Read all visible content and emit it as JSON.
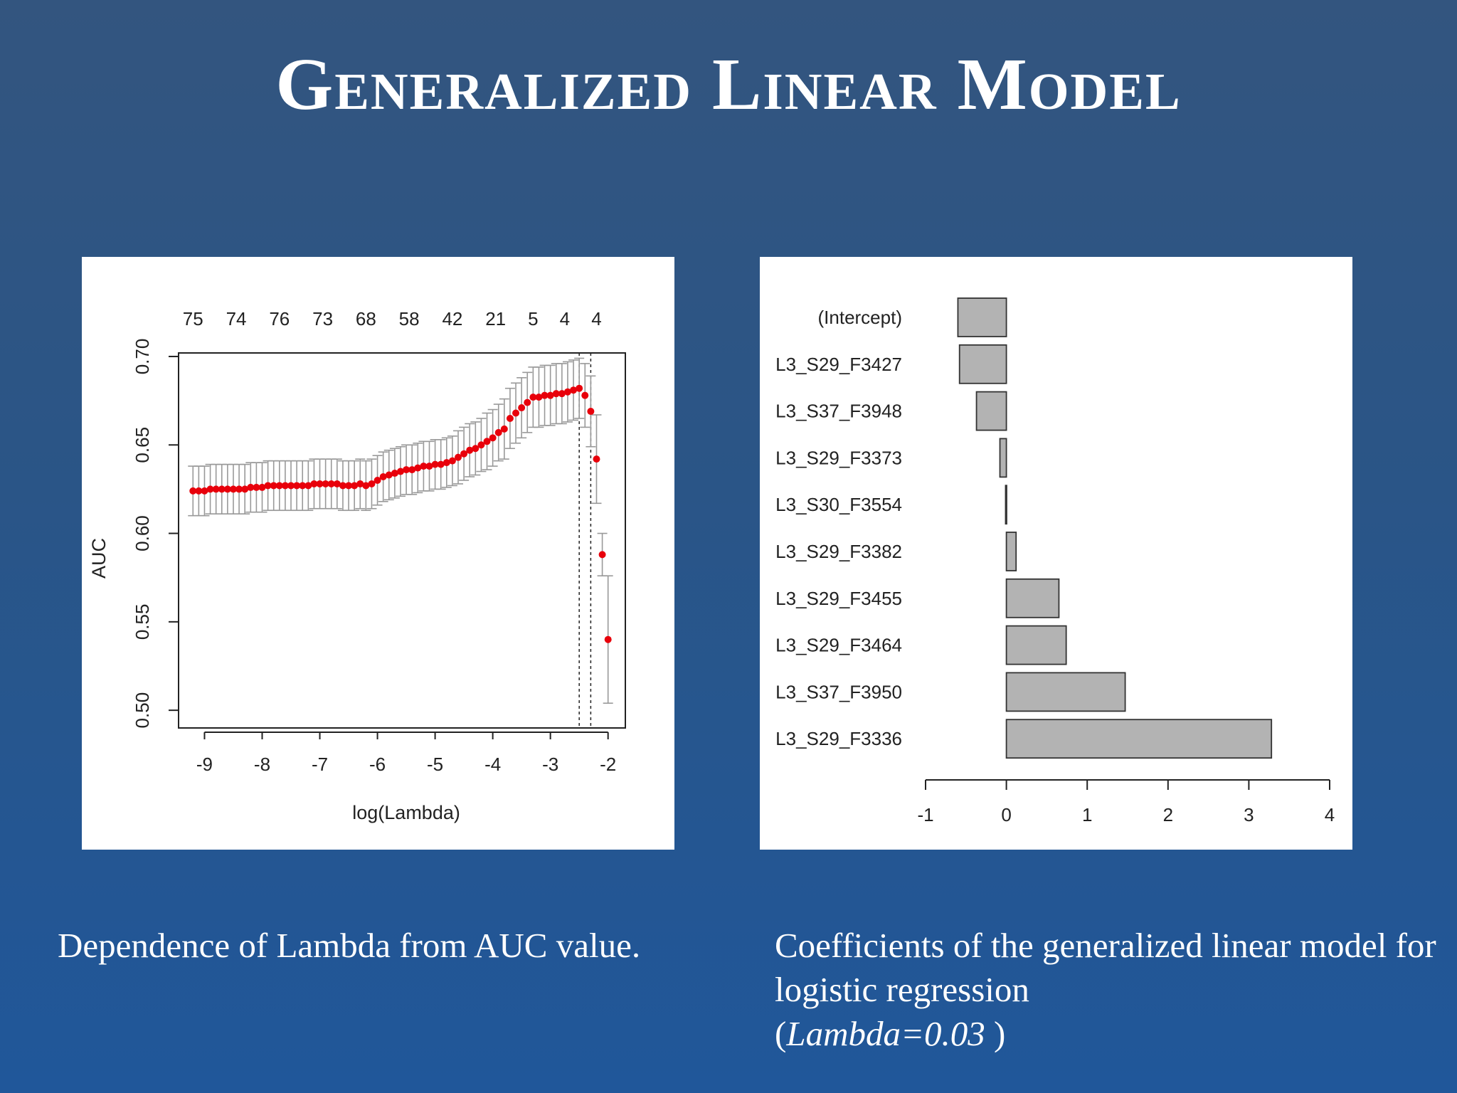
{
  "slide": {
    "title": "Generalized Linear Model",
    "left_caption": "Dependence of Lambda from AUC value.",
    "right_caption_main": "Coefficients of the generalized linear model for logistic regression",
    "right_caption_paren_open": "(",
    "right_caption_lambda": "Lambda=0.03",
    "right_caption_paren_close": " )"
  },
  "chart_data": [
    {
      "type": "scatter",
      "xlabel": "log(Lambda)",
      "ylabel": "AUC",
      "xlim": [
        -9.45,
        -1.7
      ],
      "ylim": [
        0.49,
        0.702
      ],
      "x_ticks": [
        -9,
        -8,
        -7,
        -6,
        -5,
        -4,
        -3,
        -2
      ],
      "y_ticks": [
        0.5,
        0.55,
        0.6,
        0.65,
        0.7
      ],
      "top_axis": {
        "x": [
          -9.2,
          -8.45,
          -7.7,
          -6.95,
          -6.2,
          -5.45,
          -4.7,
          -3.95,
          -3.3,
          -2.75,
          -2.2
        ],
        "labels": [
          "75",
          "74",
          "76",
          "73",
          "68",
          "58",
          "42",
          "21",
          "5",
          "4",
          "4"
        ]
      },
      "reference_lines_x": [
        -2.5,
        -2.3
      ],
      "colors": {
        "point": "#e8000b",
        "errorbar": "#999999",
        "axis": "#222222"
      },
      "points": [
        {
          "x": -9.2,
          "y": 0.624,
          "err": 0.014
        },
        {
          "x": -9.1,
          "y": 0.624,
          "err": 0.014
        },
        {
          "x": -9.0,
          "y": 0.624,
          "err": 0.014
        },
        {
          "x": -8.9,
          "y": 0.625,
          "err": 0.014
        },
        {
          "x": -8.8,
          "y": 0.625,
          "err": 0.014
        },
        {
          "x": -8.7,
          "y": 0.625,
          "err": 0.014
        },
        {
          "x": -8.6,
          "y": 0.625,
          "err": 0.014
        },
        {
          "x": -8.5,
          "y": 0.625,
          "err": 0.014
        },
        {
          "x": -8.4,
          "y": 0.625,
          "err": 0.014
        },
        {
          "x": -8.3,
          "y": 0.625,
          "err": 0.014
        },
        {
          "x": -8.2,
          "y": 0.626,
          "err": 0.014
        },
        {
          "x": -8.1,
          "y": 0.626,
          "err": 0.014
        },
        {
          "x": -8.0,
          "y": 0.626,
          "err": 0.014
        },
        {
          "x": -7.9,
          "y": 0.627,
          "err": 0.014
        },
        {
          "x": -7.8,
          "y": 0.627,
          "err": 0.014
        },
        {
          "x": -7.7,
          "y": 0.627,
          "err": 0.014
        },
        {
          "x": -7.6,
          "y": 0.627,
          "err": 0.014
        },
        {
          "x": -7.5,
          "y": 0.627,
          "err": 0.014
        },
        {
          "x": -7.4,
          "y": 0.627,
          "err": 0.014
        },
        {
          "x": -7.3,
          "y": 0.627,
          "err": 0.014
        },
        {
          "x": -7.2,
          "y": 0.627,
          "err": 0.014
        },
        {
          "x": -7.1,
          "y": 0.628,
          "err": 0.014
        },
        {
          "x": -7.0,
          "y": 0.628,
          "err": 0.014
        },
        {
          "x": -6.9,
          "y": 0.628,
          "err": 0.014
        },
        {
          "x": -6.8,
          "y": 0.628,
          "err": 0.014
        },
        {
          "x": -6.7,
          "y": 0.628,
          "err": 0.014
        },
        {
          "x": -6.6,
          "y": 0.627,
          "err": 0.014
        },
        {
          "x": -6.5,
          "y": 0.627,
          "err": 0.014
        },
        {
          "x": -6.4,
          "y": 0.627,
          "err": 0.014
        },
        {
          "x": -6.3,
          "y": 0.628,
          "err": 0.014
        },
        {
          "x": -6.2,
          "y": 0.627,
          "err": 0.014
        },
        {
          "x": -6.1,
          "y": 0.628,
          "err": 0.014
        },
        {
          "x": -6.0,
          "y": 0.63,
          "err": 0.014
        },
        {
          "x": -5.9,
          "y": 0.632,
          "err": 0.014
        },
        {
          "x": -5.8,
          "y": 0.633,
          "err": 0.014
        },
        {
          "x": -5.7,
          "y": 0.634,
          "err": 0.014
        },
        {
          "x": -5.6,
          "y": 0.635,
          "err": 0.014
        },
        {
          "x": -5.5,
          "y": 0.636,
          "err": 0.014
        },
        {
          "x": -5.4,
          "y": 0.636,
          "err": 0.014
        },
        {
          "x": -5.3,
          "y": 0.637,
          "err": 0.014
        },
        {
          "x": -5.2,
          "y": 0.638,
          "err": 0.014
        },
        {
          "x": -5.1,
          "y": 0.638,
          "err": 0.014
        },
        {
          "x": -5.0,
          "y": 0.639,
          "err": 0.014
        },
        {
          "x": -4.9,
          "y": 0.639,
          "err": 0.014
        },
        {
          "x": -4.8,
          "y": 0.64,
          "err": 0.014
        },
        {
          "x": -4.7,
          "y": 0.641,
          "err": 0.014
        },
        {
          "x": -4.6,
          "y": 0.643,
          "err": 0.015
        },
        {
          "x": -4.5,
          "y": 0.645,
          "err": 0.015
        },
        {
          "x": -4.4,
          "y": 0.647,
          "err": 0.015
        },
        {
          "x": -4.3,
          "y": 0.648,
          "err": 0.015
        },
        {
          "x": -4.2,
          "y": 0.65,
          "err": 0.015
        },
        {
          "x": -4.1,
          "y": 0.652,
          "err": 0.016
        },
        {
          "x": -4.0,
          "y": 0.654,
          "err": 0.016
        },
        {
          "x": -3.9,
          "y": 0.657,
          "err": 0.016
        },
        {
          "x": -3.8,
          "y": 0.659,
          "err": 0.017
        },
        {
          "x": -3.7,
          "y": 0.665,
          "err": 0.017
        },
        {
          "x": -3.6,
          "y": 0.668,
          "err": 0.017
        },
        {
          "x": -3.5,
          "y": 0.671,
          "err": 0.017
        },
        {
          "x": -3.4,
          "y": 0.674,
          "err": 0.017
        },
        {
          "x": -3.3,
          "y": 0.677,
          "err": 0.017
        },
        {
          "x": -3.2,
          "y": 0.677,
          "err": 0.017
        },
        {
          "x": -3.1,
          "y": 0.678,
          "err": 0.017
        },
        {
          "x": -3.0,
          "y": 0.678,
          "err": 0.017
        },
        {
          "x": -2.9,
          "y": 0.679,
          "err": 0.017
        },
        {
          "x": -2.8,
          "y": 0.679,
          "err": 0.017
        },
        {
          "x": -2.7,
          "y": 0.68,
          "err": 0.017
        },
        {
          "x": -2.6,
          "y": 0.681,
          "err": 0.017
        },
        {
          "x": -2.5,
          "y": 0.682,
          "err": 0.017
        },
        {
          "x": -2.4,
          "y": 0.678,
          "err": 0.018
        },
        {
          "x": -2.3,
          "y": 0.669,
          "err": 0.02
        },
        {
          "x": -2.2,
          "y": 0.642,
          "err": 0.025
        },
        {
          "x": -2.1,
          "y": 0.588,
          "err": 0.012
        },
        {
          "x": -2.0,
          "y": 0.54,
          "err": 0.036
        }
      ]
    },
    {
      "type": "bar",
      "orientation": "horizontal",
      "categories": [
        "(Intercept)",
        "L3_S29_F3427",
        "L3_S37_F3948",
        "L3_S29_F3373",
        "L3_S30_F3554",
        "L3_S29_F3382",
        "L3_S29_F3455",
        "L3_S29_F3464",
        "L3_S37_F3950",
        "L3_S29_F3336"
      ],
      "values": [
        -0.6,
        -0.58,
        -0.37,
        -0.08,
        -0.01,
        0.12,
        0.65,
        0.74,
        1.47,
        3.28
      ],
      "xlim": [
        -1,
        4
      ],
      "x_ticks": [
        -1,
        0,
        1,
        2,
        3,
        4
      ],
      "colors": {
        "bar_fill": "#b3b3b3",
        "bar_stroke": "#333333"
      }
    }
  ]
}
